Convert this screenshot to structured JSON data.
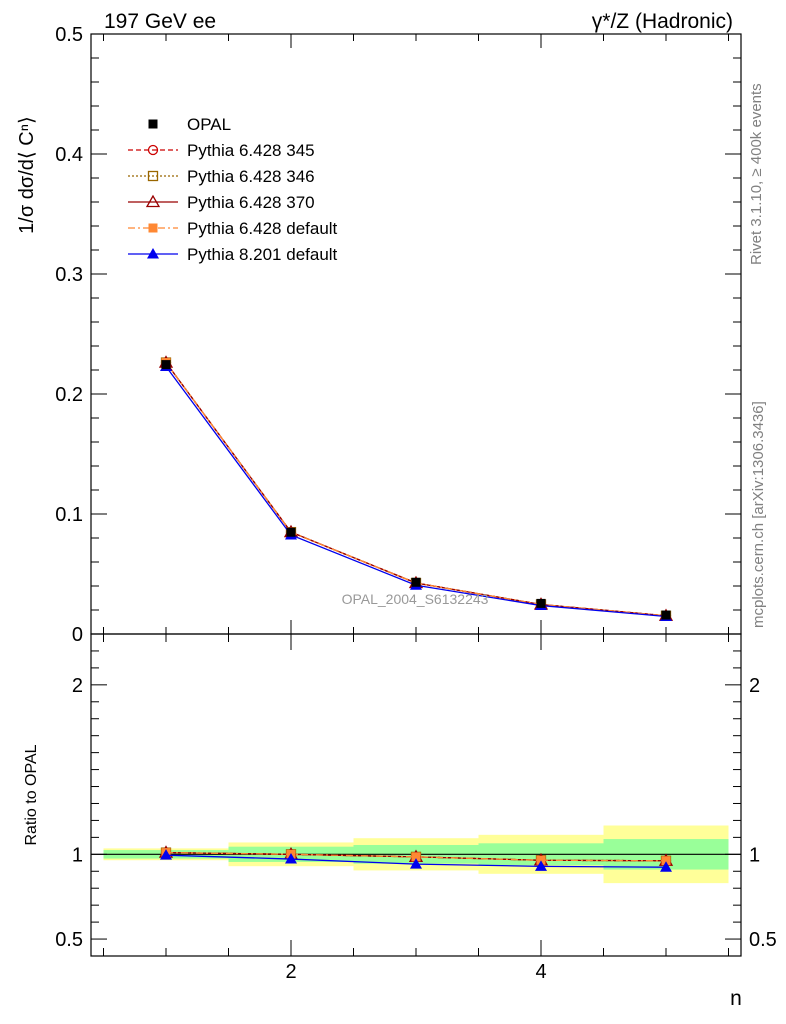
{
  "header": {
    "left": "197 GeV ee",
    "right": "γ*/Z (Hadronic)"
  },
  "side_labels": {
    "rivet": "Rivet 3.1.10, ≥ 400k events",
    "mcplots": "mcplots.cern.ch [arXiv:1306.3436]"
  },
  "watermark": "OPAL_2004_S6132243",
  "colors": {
    "data": "#000000",
    "p345": "#cc0000",
    "p346": "#996600",
    "p370": "#990000",
    "p6def": "#ff8833",
    "p8def": "#0000ee",
    "band_inner": "#99ff99",
    "band_outer": "#ffff99"
  },
  "chart_data": [
    {
      "type": "line",
      "xlabel": "n",
      "ylabel": "1/σ dσ/d⟨ Cⁿ⟩",
      "xlim": [
        0.4,
        5.6
      ],
      "ylim": [
        0,
        0.5
      ],
      "ytick_labels": [
        "0",
        "0.1",
        "0.2",
        "0.3",
        "0.4",
        "0.5"
      ],
      "x": [
        1,
        2,
        3,
        4,
        5
      ],
      "legend_position": "top-left",
      "series": [
        {
          "name": "OPAL",
          "key": "data",
          "values": [
            0.2245,
            0.0848,
            0.0431,
            0.0255,
            0.0158
          ]
        },
        {
          "name": "Pythia 6.428 345",
          "key": "p345",
          "values": [
            0.2262,
            0.0849,
            0.0425,
            0.0246,
            0.0152
          ]
        },
        {
          "name": "Pythia 6.428 346",
          "key": "p346",
          "values": [
            0.2262,
            0.0849,
            0.0425,
            0.0246,
            0.0152
          ]
        },
        {
          "name": "Pythia 6.428 370",
          "key": "p370",
          "values": [
            0.2262,
            0.0849,
            0.0425,
            0.0246,
            0.0152
          ]
        },
        {
          "name": "Pythia 6.428 default",
          "key": "p6def",
          "values": [
            0.2262,
            0.0849,
            0.0425,
            0.0246,
            0.0152
          ]
        },
        {
          "name": "Pythia 8.201 default",
          "key": "p8def",
          "values": [
            0.2229,
            0.0825,
            0.0406,
            0.0237,
            0.0146
          ]
        }
      ]
    },
    {
      "type": "line",
      "ylabel": "Ratio to OPAL",
      "xlabel": "n",
      "xlim": [
        0.4,
        5.6
      ],
      "ylim": [
        0.4,
        2.3
      ],
      "xtick_labels": [
        "2",
        "4"
      ],
      "ytick_labels": [
        "0.5",
        "1",
        "2"
      ],
      "x": [
        1,
        2,
        3,
        4,
        5
      ],
      "bands": [
        {
          "x_low": 0.5,
          "x_high": 1.5,
          "inner": [
            0.975,
            1.025
          ],
          "outer": [
            0.965,
            1.035
          ]
        },
        {
          "x_low": 1.5,
          "x_high": 2.5,
          "inner": [
            0.955,
            1.045
          ],
          "outer": [
            0.93,
            1.07
          ]
        },
        {
          "x_low": 2.5,
          "x_high": 3.5,
          "inner": [
            0.945,
            1.055
          ],
          "outer": [
            0.905,
            1.095
          ]
        },
        {
          "x_low": 3.5,
          "x_high": 4.5,
          "inner": [
            0.935,
            1.065
          ],
          "outer": [
            0.885,
            1.115
          ]
        },
        {
          "x_low": 4.5,
          "x_high": 5.5,
          "inner": [
            0.91,
            1.09
          ],
          "outer": [
            0.83,
            1.17
          ]
        }
      ],
      "series": [
        {
          "name": "Pythia 6.428 345",
          "key": "p345",
          "values": [
            1.01,
            1.0,
            0.985,
            0.965,
            0.962
          ]
        },
        {
          "name": "Pythia 6.428 346",
          "key": "p346",
          "values": [
            1.01,
            1.0,
            0.985,
            0.965,
            0.962
          ]
        },
        {
          "name": "Pythia 6.428 370",
          "key": "p370",
          "values": [
            1.01,
            1.0,
            0.985,
            0.965,
            0.962
          ]
        },
        {
          "name": "Pythia 6.428 default",
          "key": "p6def",
          "values": [
            1.01,
            1.0,
            0.985,
            0.965,
            0.962
          ]
        },
        {
          "name": "Pythia 8.201 default",
          "key": "p8def",
          "values": [
            0.995,
            0.972,
            0.942,
            0.929,
            0.924
          ]
        }
      ]
    }
  ]
}
